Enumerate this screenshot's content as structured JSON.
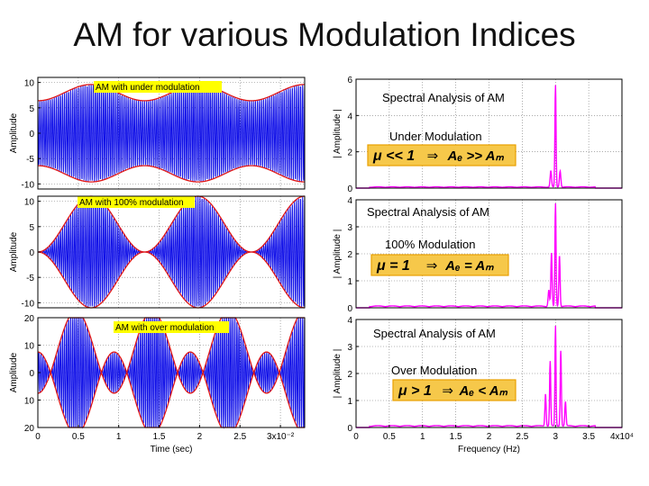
{
  "slide": {
    "title": "AM for various Modulation Indices"
  },
  "colors": {
    "time_signal": "#1010e8",
    "envelope": "#e01818",
    "spectrum": "#ff00ff",
    "label_bg": "#ffff00",
    "formula_bg": "#f6c84a",
    "formula_border": "#e8a000"
  },
  "chart_data": [
    {
      "id": "time-under",
      "type": "line",
      "label": "AM with under modulation",
      "ylabel": "Amplitude",
      "yticks": [
        10,
        5,
        0,
        -5,
        -10
      ],
      "ytick_labels": [
        "10",
        "5",
        "0",
        "-5",
        "-10"
      ],
      "ylim": [
        -11,
        11
      ],
      "xlim": [
        0,
        0.033
      ],
      "carrier_amplitude": 8,
      "modulation_index": 0.2,
      "message_cycles": 2.5,
      "carrier_cycles": 130
    },
    {
      "id": "time-100",
      "type": "line",
      "label": "AM with 100% modulation",
      "ylabel": "Amplitude",
      "yticks": [
        10,
        5,
        0,
        -5,
        -10
      ],
      "ytick_labels": [
        "10",
        "5",
        "0",
        "-5",
        "-10"
      ],
      "ylim": [
        -11,
        11
      ],
      "xlim": [
        0,
        0.033
      ],
      "carrier_amplitude": 5.5,
      "modulation_index": 1.0,
      "message_cycles": 2.5,
      "carrier_cycles": 130
    },
    {
      "id": "time-over",
      "type": "line",
      "label": "AM with over modulation",
      "ylabel": "Amplitude",
      "xlabel": "Time (sec)",
      "yticks": [
        20,
        10,
        0,
        10,
        20
      ],
      "ytick_labels": [
        "20",
        "10",
        "0",
        "10",
        "20"
      ],
      "ylim": [
        -20,
        20
      ],
      "xlim": [
        0,
        0.033
      ],
      "xticks": [
        0,
        0.005,
        0.01,
        0.015,
        0.02,
        0.025,
        0.03
      ],
      "xtick_labels": [
        "0",
        "0.5",
        "1",
        "1.5",
        "2",
        "2.5",
        "3x10⁻²"
      ],
      "carrier_amplitude": 7.5,
      "modulation_index": 2.0,
      "message_cycles": 3.5,
      "carrier_cycles": 130
    },
    {
      "id": "spec-under",
      "type": "line",
      "ylabel": "| Amplitude |",
      "yticks": [
        0,
        2,
        4,
        6
      ],
      "ytick_labels": [
        "0",
        "2",
        "4",
        "6"
      ],
      "ylim": [
        0,
        6
      ],
      "xlim": [
        0,
        40000
      ],
      "title": "Spectral Analysis of AM",
      "subtitle": "Under Modulation",
      "formula": [
        "μ << 1",
        "⇒",
        "Aₑ >> Aₘ"
      ],
      "peaks": [
        {
          "f": 30000,
          "a": 5.6,
          "w": 120
        },
        {
          "f": 29300,
          "a": 0.9,
          "w": 150
        },
        {
          "f": 30700,
          "a": 0.9,
          "w": 150
        }
      ]
    },
    {
      "id": "spec-100",
      "type": "line",
      "ylabel": "| Amplitude |",
      "yticks": [
        0,
        1,
        2,
        3,
        4
      ],
      "ytick_labels": [
        "0",
        "1",
        "2",
        "3",
        "4"
      ],
      "ylim": [
        0,
        4
      ],
      "xlim": [
        0,
        40000
      ],
      "title": "Spectral Analysis of AM",
      "subtitle": "100% Modulation",
      "formula": [
        "μ = 1",
        "⇒",
        "Aₑ = Aₘ"
      ],
      "peaks": [
        {
          "f": 30000,
          "a": 3.8,
          "w": 120
        },
        {
          "f": 29400,
          "a": 2.0,
          "w": 130
        },
        {
          "f": 30600,
          "a": 1.9,
          "w": 130
        },
        {
          "f": 29000,
          "a": 0.6,
          "w": 150
        }
      ]
    },
    {
      "id": "spec-over",
      "type": "line",
      "ylabel": "| Amplitude |",
      "xlabel": "Frequency (Hz)",
      "yticks": [
        0,
        1,
        2,
        3,
        4
      ],
      "ytick_labels": [
        "0",
        "1",
        "2",
        "3",
        "4"
      ],
      "ylim": [
        0,
        4
      ],
      "xlim": [
        0,
        40000
      ],
      "xticks": [
        0,
        5000,
        10000,
        15000,
        20000,
        25000,
        30000,
        35000,
        40000
      ],
      "xtick_labels": [
        "0",
        "0.5",
        "1",
        "1.5",
        "2",
        "2.5",
        "3",
        "3.5",
        "4x10⁴"
      ],
      "title": "Spectral Analysis of AM",
      "subtitle": "Over Modulation",
      "formula": [
        "μ > 1",
        "⇒",
        "Aₑ < Aₘ"
      ],
      "peaks": [
        {
          "f": 30000,
          "a": 3.7,
          "w": 110
        },
        {
          "f": 29200,
          "a": 2.4,
          "w": 120
        },
        {
          "f": 30800,
          "a": 2.8,
          "w": 120
        },
        {
          "f": 28500,
          "a": 1.2,
          "w": 130
        },
        {
          "f": 31500,
          "a": 0.9,
          "w": 130
        }
      ]
    }
  ]
}
